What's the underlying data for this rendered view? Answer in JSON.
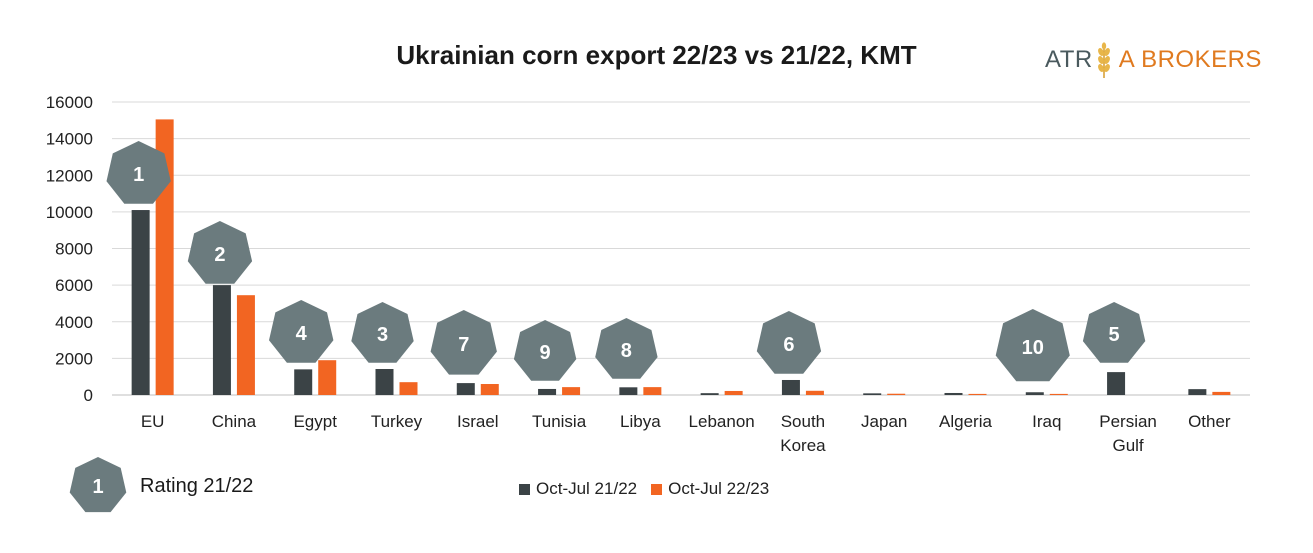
{
  "chart_data": {
    "type": "bar",
    "title": "Ukrainian corn export 22/23 vs 21/22, KMT",
    "categories": [
      "EU",
      "China",
      "Egypt",
      "Turkey",
      "Israel",
      "Tunisia",
      "Libya",
      "Lebanon",
      "South Korea",
      "Japan",
      "Algeria",
      "Iraq",
      "Persian Gulf",
      "Other"
    ],
    "series": [
      {
        "name": "Oct-Jul 21/22",
        "color": "#3b4346",
        "values": [
          10100,
          6000,
          1400,
          1420,
          650,
          330,
          420,
          100,
          820,
          90,
          110,
          150,
          1250,
          320
        ]
      },
      {
        "name": "Oct-Jul 22/23",
        "color": "#f26522",
        "values": [
          15050,
          5450,
          1900,
          700,
          600,
          430,
          430,
          220,
          230,
          70,
          60,
          60,
          0,
          170
        ]
      }
    ],
    "ratings": [
      {
        "category": "EU",
        "rank": "1"
      },
      {
        "category": "China",
        "rank": "2"
      },
      {
        "category": "Egypt",
        "rank": "4"
      },
      {
        "category": "Turkey",
        "rank": "3"
      },
      {
        "category": "Israel",
        "rank": "7"
      },
      {
        "category": "Tunisia",
        "rank": "9"
      },
      {
        "category": "Libya",
        "rank": "8"
      },
      {
        "category": "South Korea",
        "rank": "6"
      },
      {
        "category": "Iraq",
        "rank": "10"
      },
      {
        "category": "Persian Gulf",
        "rank": "5"
      }
    ],
    "ylim": [
      0,
      16000
    ],
    "yticks": [
      0,
      2000,
      4000,
      6000,
      8000,
      10000,
      12000,
      14000,
      16000
    ],
    "grid": true,
    "legend_position": "bottom"
  },
  "logo": {
    "left": "ATR",
    "right": "A BROKERS"
  },
  "rating_legend": {
    "rank": "1",
    "label": "Rating 21/22"
  },
  "colors": {
    "badge": "#6b7b7e",
    "gridline": "#d9d9d9",
    "axis": "#bfbfbf"
  }
}
